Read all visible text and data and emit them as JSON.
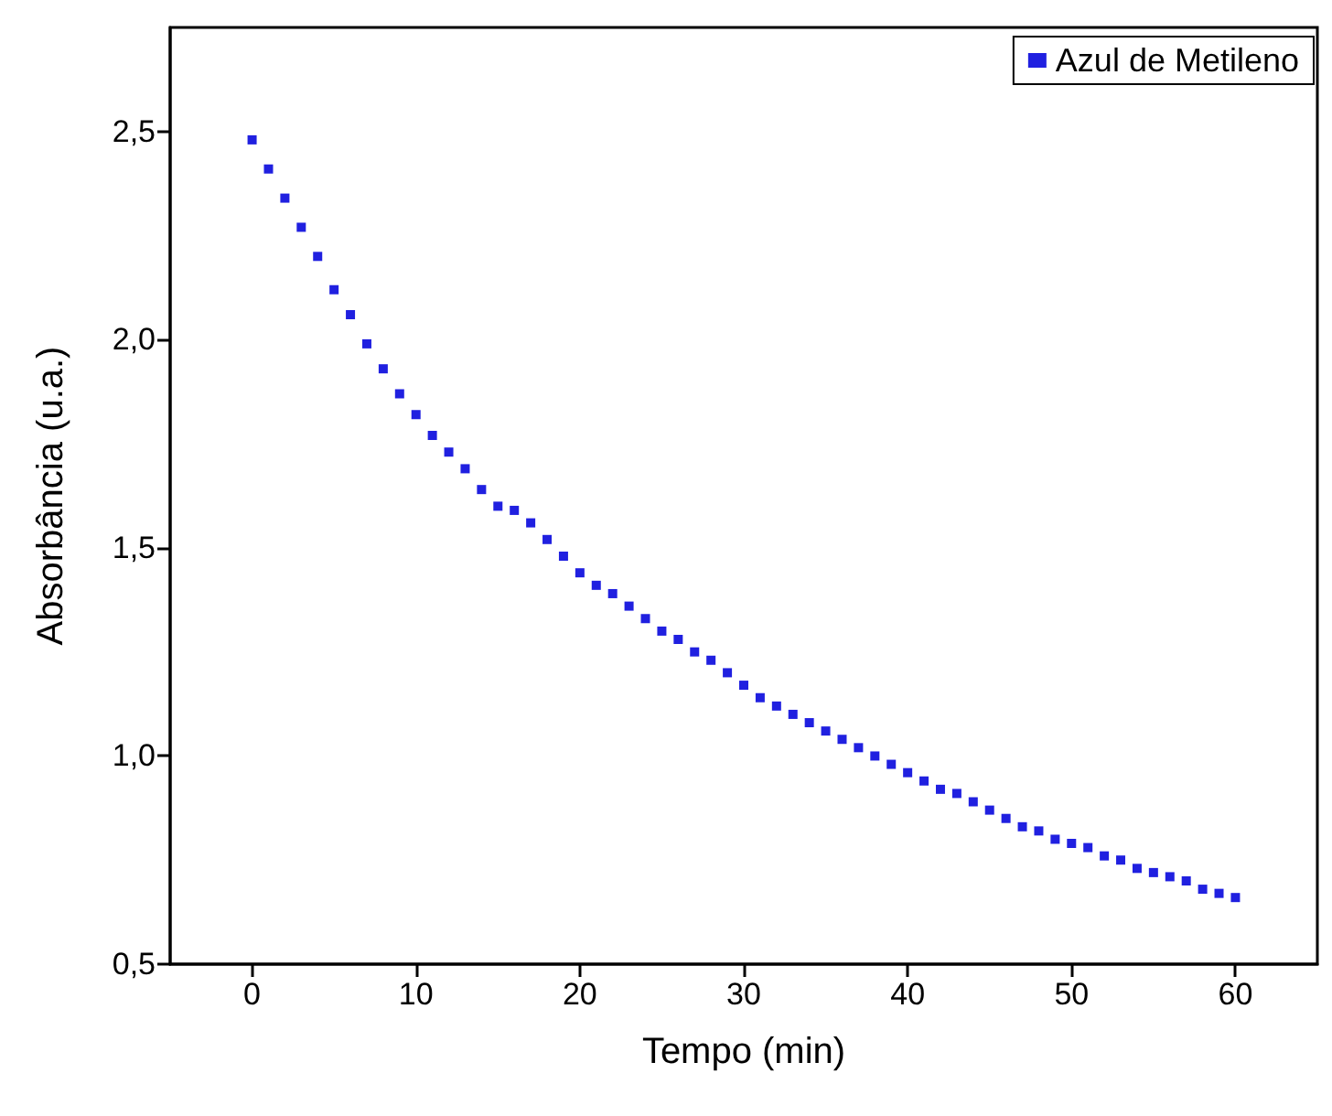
{
  "chart_data": {
    "type": "scatter",
    "xlabel": "Tempo (min)",
    "ylabel": "Absorbância (u.a.)",
    "x": [
      0,
      1,
      2,
      3,
      4,
      5,
      6,
      7,
      8,
      9,
      10,
      11,
      12,
      13,
      14,
      15,
      16,
      17,
      18,
      19,
      20,
      21,
      22,
      23,
      24,
      25,
      26,
      27,
      28,
      29,
      30,
      31,
      32,
      33,
      34,
      35,
      36,
      37,
      38,
      39,
      40,
      41,
      42,
      43,
      44,
      45,
      46,
      47,
      48,
      49,
      50,
      51,
      52,
      53,
      54,
      55,
      56,
      57,
      58,
      59,
      60
    ],
    "series": [
      {
        "name": "Azul de Metileno",
        "color": "#2020e0",
        "values": [
          2.48,
          2.41,
          2.34,
          2.27,
          2.2,
          2.12,
          2.06,
          1.99,
          1.93,
          1.87,
          1.82,
          1.77,
          1.73,
          1.69,
          1.64,
          1.6,
          1.59,
          1.56,
          1.52,
          1.48,
          1.44,
          1.41,
          1.39,
          1.36,
          1.33,
          1.3,
          1.28,
          1.25,
          1.23,
          1.2,
          1.17,
          1.14,
          1.12,
          1.1,
          1.08,
          1.06,
          1.04,
          1.02,
          1.0,
          0.98,
          0.96,
          0.94,
          0.92,
          0.91,
          0.89,
          0.87,
          0.85,
          0.83,
          0.82,
          0.8,
          0.79,
          0.78,
          0.76,
          0.75,
          0.73,
          0.72,
          0.71,
          0.7,
          0.68,
          0.67,
          0.66
        ]
      }
    ],
    "xlim": [
      -5,
      65
    ],
    "xticks": [
      0,
      10,
      20,
      30,
      40,
      50,
      60
    ],
    "ylim": [
      0.5,
      2.75
    ],
    "yticks": [
      {
        "value": 0.5,
        "label": "0,5"
      },
      {
        "value": 1.0,
        "label": "1,0"
      },
      {
        "value": 1.5,
        "label": "1,5"
      },
      {
        "value": 2.0,
        "label": "2,0"
      },
      {
        "value": 2.5,
        "label": "2,5"
      }
    ],
    "marker": "square",
    "grid": false,
    "legend": "top right"
  }
}
